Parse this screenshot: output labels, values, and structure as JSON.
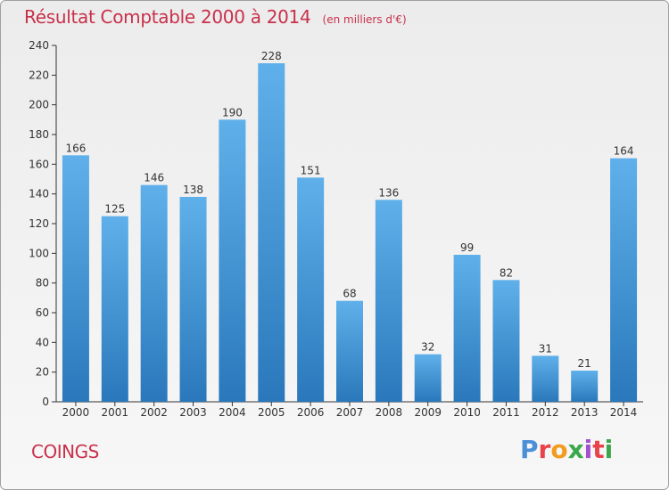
{
  "header": {
    "title": "Résultat Comptable 2000 à 2014",
    "unit": "(en milliers d'€)"
  },
  "footer": {
    "commune": "COINGS",
    "brand": "Proxiti",
    "brand_colors": [
      "#4a8fd8",
      "#e8434a",
      "#f29c1f",
      "#3aa84a",
      "#a54fd0",
      "#e8434a",
      "#3aa84a"
    ]
  },
  "colors": {
    "title": "#c8304a",
    "bar_light": "#5fb0ea",
    "bar_dark": "#2f7fc1"
  },
  "chart_data": {
    "type": "bar",
    "title": "Résultat Comptable 2000 à 2014",
    "categories": [
      "2000",
      "2001",
      "2002",
      "2003",
      "2004",
      "2005",
      "2006",
      "2007",
      "2008",
      "2009",
      "2010",
      "2011",
      "2012",
      "2013",
      "2014"
    ],
    "values": [
      166,
      125,
      146,
      138,
      190,
      228,
      151,
      68,
      136,
      32,
      99,
      82,
      31,
      21,
      164
    ],
    "ylim": [
      0,
      240
    ],
    "yticks": [
      0,
      20,
      40,
      60,
      80,
      100,
      120,
      140,
      160,
      180,
      200,
      220,
      240
    ],
    "grid": false,
    "data_labels": true
  }
}
